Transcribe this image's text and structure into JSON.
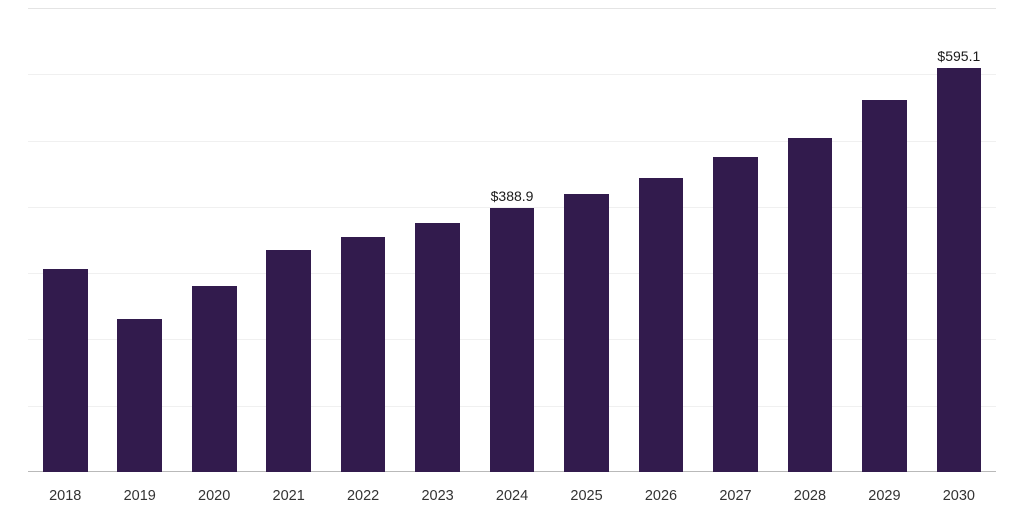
{
  "chart_data": {
    "type": "bar",
    "title": "",
    "xlabel": "",
    "ylabel": "",
    "categories": [
      "2018",
      "2019",
      "2020",
      "2021",
      "2022",
      "2023",
      "2024",
      "2025",
      "2026",
      "2027",
      "2028",
      "2029",
      "2030"
    ],
    "values": [
      299.0,
      225.4,
      274.0,
      327.0,
      346.2,
      366.8,
      388.9,
      409.6,
      433.1,
      464.0,
      492.1,
      548.0,
      595.1
    ],
    "annotations": [
      {
        "index": 6,
        "text": "$388.9"
      },
      {
        "index": 12,
        "text": "$595.1"
      }
    ],
    "ylim": [
      0,
      683
    ],
    "grid": true,
    "gridline_count": 7,
    "legend_position": "none",
    "bar_color": "#321b4d",
    "background_color": "#ffffff",
    "axis_line_color": "#b9b9b9",
    "gridline_color": "#f0f0f0"
  }
}
